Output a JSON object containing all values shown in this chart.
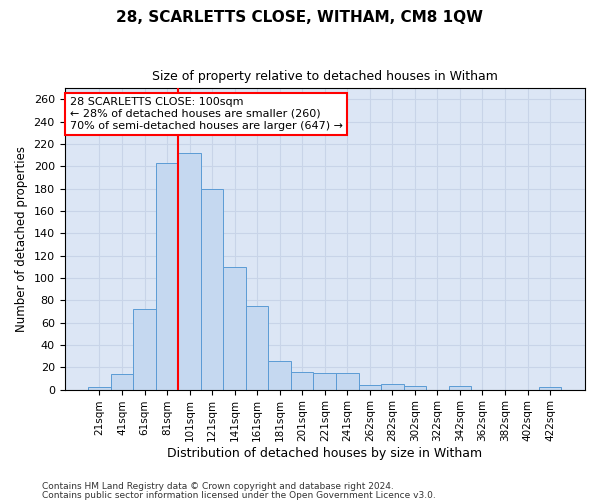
{
  "title": "28, SCARLETTS CLOSE, WITHAM, CM8 1QW",
  "subtitle": "Size of property relative to detached houses in Witham",
  "xlabel": "Distribution of detached houses by size in Witham",
  "ylabel": "Number of detached properties",
  "footnote1": "Contains HM Land Registry data © Crown copyright and database right 2024.",
  "footnote2": "Contains public sector information licensed under the Open Government Licence v3.0.",
  "categories": [
    "21sqm",
    "41sqm",
    "61sqm",
    "81sqm",
    "101sqm",
    "121sqm",
    "141sqm",
    "161sqm",
    "181sqm",
    "201sqm",
    "221sqm",
    "241sqm",
    "262sqm",
    "282sqm",
    "302sqm",
    "322sqm",
    "342sqm",
    "362sqm",
    "382sqm",
    "402sqm",
    "422sqm"
  ],
  "values": [
    2,
    14,
    72,
    203,
    212,
    180,
    110,
    75,
    26,
    16,
    15,
    15,
    4,
    5,
    3,
    0,
    3,
    0,
    0,
    0,
    2
  ],
  "bar_color": "#c5d8f0",
  "bar_edge_color": "#5b9bd5",
  "vline_color": "red",
  "vline_x_index": 4,
  "ylim": [
    0,
    270
  ],
  "yticks": [
    0,
    20,
    40,
    60,
    80,
    100,
    120,
    140,
    160,
    180,
    200,
    220,
    240,
    260
  ],
  "annotation_line1": "28 SCARLETTS CLOSE: 100sqm",
  "annotation_line2": "← 28% of detached houses are smaller (260)",
  "annotation_line3": "70% of semi-detached houses are larger (647) →",
  "annotation_box_facecolor": "white",
  "annotation_box_edgecolor": "red",
  "grid_color": "#c8d4e8",
  "bg_color": "white",
  "plot_bg_color": "#dce6f5"
}
